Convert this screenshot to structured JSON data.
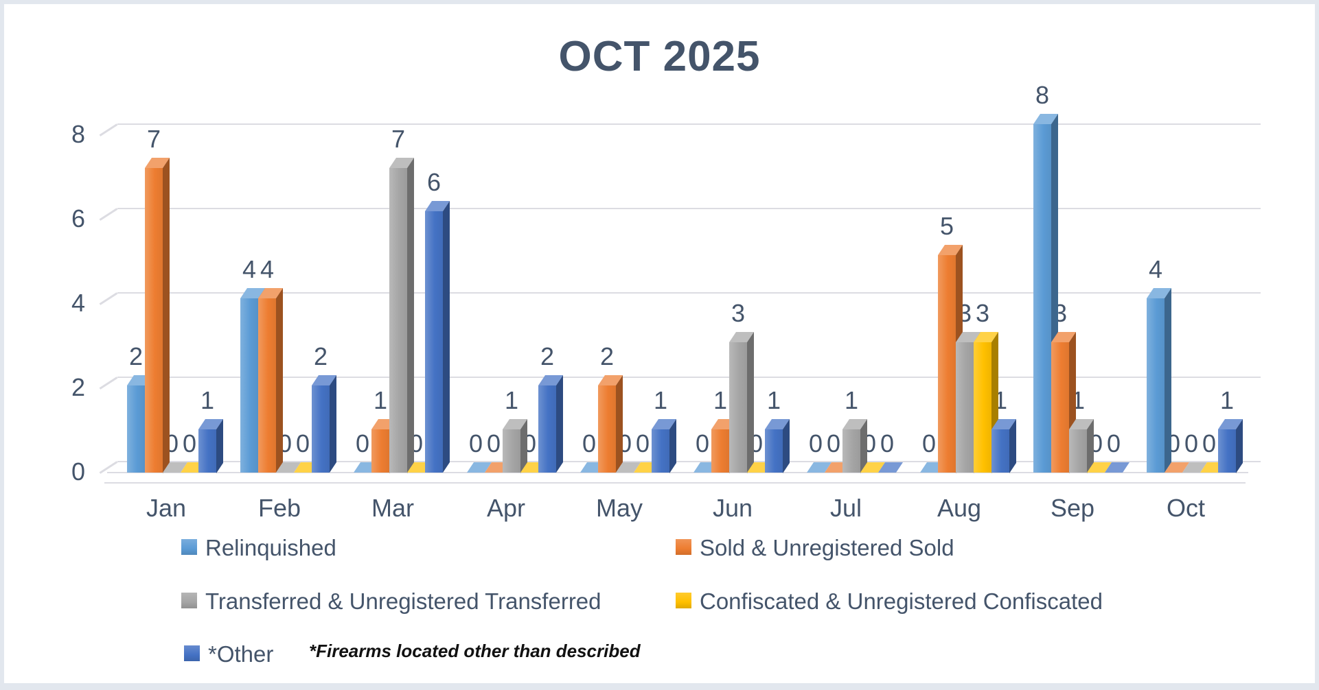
{
  "title": "OCT 2025",
  "footnote": "*Firearms located other than described",
  "chart_data": {
    "type": "bar",
    "title": "OCT 2025",
    "categories": [
      "Jan",
      "Feb",
      "Mar",
      "Apr",
      "May",
      "Jun",
      "Jul",
      "Aug",
      "Sep",
      "Oct"
    ],
    "series": [
      {
        "name": "Relinquished",
        "color": "#5b9bd5",
        "values": [
          2,
          4,
          0,
          0,
          0,
          0,
          0,
          0,
          8,
          4
        ]
      },
      {
        "name": "Sold & Unregistered Sold",
        "color": "#ed7d31",
        "values": [
          7,
          4,
          1,
          0,
          2,
          1,
          0,
          5,
          3,
          0
        ]
      },
      {
        "name": "Transferred & Unregistered Transferred",
        "color": "#a5a5a5",
        "values": [
          0,
          0,
          7,
          1,
          0,
          3,
          1,
          3,
          1,
          0
        ]
      },
      {
        "name": "Confiscated & Unregistered Confiscated",
        "color": "#ffc000",
        "values": [
          0,
          0,
          0,
          0,
          0,
          0,
          0,
          3,
          0,
          0
        ]
      },
      {
        "name": "*Other",
        "color": "#4472c4",
        "values": [
          1,
          2,
          6,
          2,
          1,
          1,
          0,
          1,
          0,
          1
        ]
      }
    ],
    "y_axis": {
      "ticks": [
        0,
        2,
        4,
        6,
        8
      ],
      "min": 0,
      "max": 8
    },
    "data_labels": true,
    "gridlines": true,
    "legend_position": "bottom",
    "style": "3d-clustered-column"
  },
  "legend": {
    "items": [
      {
        "label": "Relinquished",
        "color": "#5b9bd5"
      },
      {
        "label": "Sold & Unregistered Sold",
        "color": "#ed7d31"
      },
      {
        "label": "Transferred & Unregistered Transferred",
        "color": "#a5a5a5"
      },
      {
        "label": "Confiscated & Unregistered Confiscated",
        "color": "#ffc000"
      },
      {
        "label": "*Other",
        "color": "#4472c4"
      }
    ]
  },
  "colors": {
    "text": "#44546a",
    "gridline": "#dcdce2",
    "frame_border": "#e2e7ee",
    "background": "#ffffff"
  }
}
